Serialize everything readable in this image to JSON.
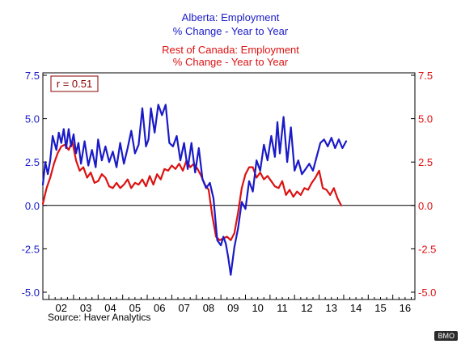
{
  "chart_data": {
    "type": "line",
    "title_lines": [
      {
        "text": "Alberta: Employment",
        "color": "#1a1ac8"
      },
      {
        "text": "% Change - Year to Year",
        "color": "#1a1ac8"
      },
      {
        "text": "Rest of Canada: Employment",
        "color": "#dd1111"
      },
      {
        "text": "% Change - Year to Year",
        "color": "#dd1111"
      }
    ],
    "annotation": "r = 0.51",
    "source": "Source: Haver Analytics",
    "xlim": [
      2001.75,
      2016.9
    ],
    "ylim": [
      -5.0,
      7.5
    ],
    "y_ticks": [
      -5.0,
      -2.5,
      0.0,
      2.5,
      5.0,
      7.5
    ],
    "left_tick_labels": [
      "-5.0",
      "-2.5",
      "0.0",
      "2.5",
      "5.0",
      "7.5"
    ],
    "right_tick_labels": [
      "-5.0",
      "-2.5",
      "0.0",
      "2.5",
      "5.0",
      "7.5"
    ],
    "x_tick_labels": [
      "02",
      "03",
      "04",
      "05",
      "06",
      "07",
      "08",
      "09",
      "10",
      "11",
      "12",
      "13",
      "14",
      "15",
      "16"
    ],
    "colors": {
      "alberta": "#1a1ac8",
      "rest": "#dd1111",
      "zero_line": "#000000"
    },
    "series": [
      {
        "name": "Alberta: Employment",
        "axis": "left",
        "color": "#1a1ac8",
        "x": [
          2001.75,
          2001.85,
          2001.95,
          2002.05,
          2002.15,
          2002.3,
          2002.4,
          2002.5,
          2002.6,
          2002.7,
          2002.8,
          2002.9,
          2003.0,
          2003.1,
          2003.2,
          2003.3,
          2003.45,
          2003.6,
          2003.75,
          2003.9,
          2004.0,
          2004.15,
          2004.3,
          2004.45,
          2004.6,
          2004.75,
          2004.9,
          2005.05,
          2005.2,
          2005.35,
          2005.5,
          2005.65,
          2005.8,
          2005.95,
          2006.05,
          2006.15,
          2006.3,
          2006.45,
          2006.6,
          2006.75,
          2006.9,
          2007.05,
          2007.2,
          2007.35,
          2007.5,
          2007.65,
          2007.8,
          2007.95,
          2008.1,
          2008.25,
          2008.4,
          2008.55,
          2008.7,
          2008.85,
          2009.0,
          2009.1,
          2009.2,
          2009.3,
          2009.4,
          2009.55,
          2009.7,
          2009.85,
          2010.0,
          2010.15,
          2010.3,
          2010.45,
          2010.6,
          2010.75,
          2010.9,
          2011.05,
          2011.2,
          2011.3,
          2011.4,
          2011.55,
          2011.7,
          2011.85,
          2012.0,
          2012.15,
          2012.3,
          2012.45,
          2012.6,
          2012.75,
          2012.9,
          2013.05,
          2013.2,
          2013.35,
          2013.5,
          2013.65,
          2013.8,
          2013.95,
          2014.1
        ],
        "values": [
          1.2,
          2.5,
          1.8,
          2.6,
          4.0,
          3.2,
          4.2,
          3.6,
          4.4,
          3.3,
          4.4,
          3.4,
          4.1,
          3.0,
          3.6,
          2.4,
          3.7,
          2.3,
          3.2,
          2.2,
          3.8,
          2.6,
          3.4,
          2.5,
          3.1,
          2.2,
          3.6,
          2.4,
          3.3,
          4.3,
          3.0,
          3.5,
          5.6,
          3.4,
          3.8,
          5.6,
          4.2,
          5.8,
          5.2,
          5.8,
          3.6,
          3.4,
          4.0,
          2.6,
          3.6,
          2.1,
          3.6,
          1.9,
          3.3,
          1.5,
          1.0,
          1.3,
          0.4,
          -2.0,
          -2.3,
          -1.8,
          -2.2,
          -3.0,
          -4.0,
          -2.4,
          -1.3,
          0.2,
          -0.2,
          1.4,
          0.8,
          2.6,
          2.0,
          3.5,
          2.6,
          4.0,
          2.8,
          4.8,
          3.0,
          5.1,
          2.5,
          4.5,
          2.0,
          2.6,
          1.8,
          2.1,
          2.4,
          2.0,
          2.8,
          3.6,
          3.8,
          3.4,
          3.9,
          3.3,
          3.8,
          3.3,
          3.7
        ]
      },
      {
        "name": "Rest of Canada: Employment",
        "axis": "right",
        "color": "#dd1111",
        "x": [
          2001.75,
          2001.9,
          2002.05,
          2002.2,
          2002.35,
          2002.5,
          2002.65,
          2002.8,
          2002.95,
          2003.1,
          2003.25,
          2003.4,
          2003.55,
          2003.7,
          2003.85,
          2004.0,
          2004.15,
          2004.3,
          2004.45,
          2004.6,
          2004.75,
          2004.9,
          2005.05,
          2005.2,
          2005.35,
          2005.5,
          2005.65,
          2005.8,
          2005.95,
          2006.1,
          2006.25,
          2006.4,
          2006.55,
          2006.7,
          2006.85,
          2007.0,
          2007.15,
          2007.3,
          2007.45,
          2007.6,
          2007.75,
          2007.9,
          2008.05,
          2008.2,
          2008.35,
          2008.5,
          2008.65,
          2008.8,
          2008.95,
          2009.1,
          2009.25,
          2009.4,
          2009.55,
          2009.7,
          2009.85,
          2010.0,
          2010.15,
          2010.3,
          2010.45,
          2010.6,
          2010.75,
          2010.9,
          2011.05,
          2011.2,
          2011.35,
          2011.5,
          2011.65,
          2011.8,
          2011.95,
          2012.1,
          2012.25,
          2012.4,
          2012.55,
          2012.7,
          2012.85,
          2013.0,
          2013.15,
          2013.3,
          2013.45,
          2013.6,
          2013.75,
          2013.9
        ],
        "values": [
          0.1,
          1.0,
          1.6,
          2.4,
          3.0,
          3.4,
          3.5,
          3.2,
          3.7,
          2.6,
          2.0,
          2.2,
          1.6,
          1.9,
          1.3,
          1.4,
          1.8,
          1.6,
          1.1,
          1.0,
          1.3,
          1.0,
          1.2,
          1.5,
          1.0,
          1.3,
          1.2,
          1.5,
          1.1,
          1.7,
          1.2,
          1.8,
          1.5,
          2.1,
          2.0,
          2.3,
          2.1,
          2.4,
          2.0,
          2.6,
          2.2,
          2.4,
          2.1,
          1.7,
          1.2,
          0.9,
          -0.6,
          -1.8,
          -2.0,
          -1.9,
          -1.8,
          -2.0,
          -1.6,
          -0.4,
          1.0,
          1.8,
          2.2,
          2.2,
          1.6,
          1.9,
          1.5,
          1.7,
          1.4,
          1.1,
          1.0,
          1.4,
          0.6,
          0.9,
          0.5,
          0.8,
          0.6,
          1.0,
          0.9,
          1.3,
          1.6,
          2.0,
          1.0,
          0.9,
          0.6,
          1.0,
          0.4,
          0.0
        ]
      }
    ]
  },
  "watermark": "BMO"
}
